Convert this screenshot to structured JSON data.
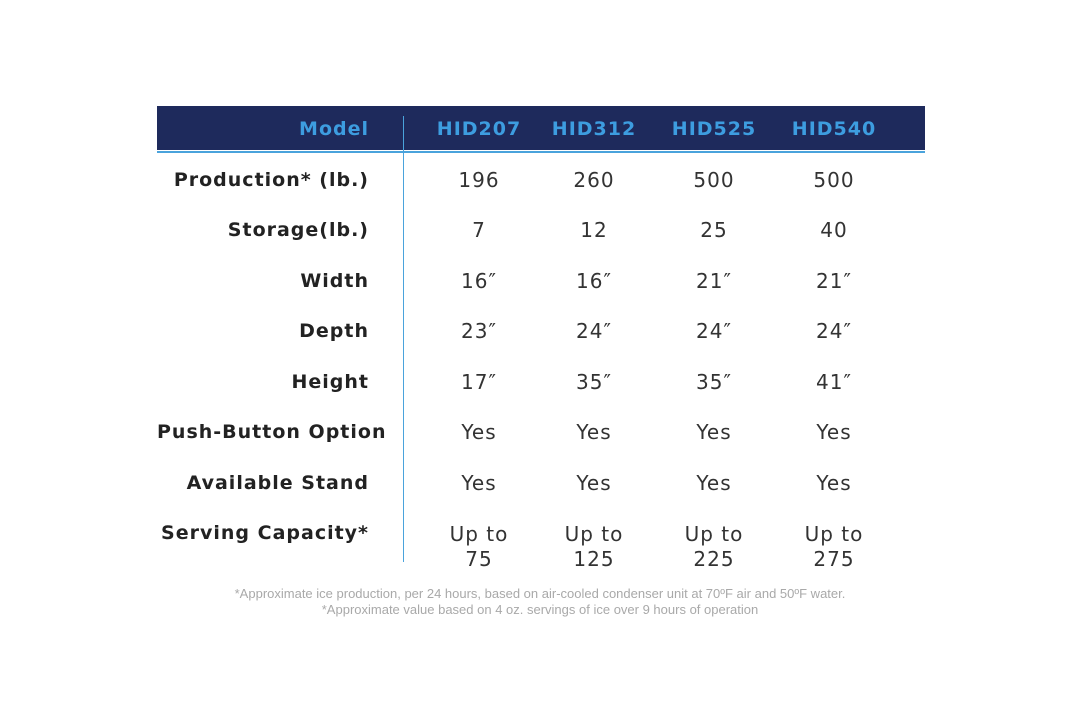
{
  "header": {
    "label": "Model",
    "models": [
      "HID207",
      "HID312",
      "HID525",
      "HID540"
    ]
  },
  "rows": [
    {
      "label": "Production* (lb.)",
      "values": [
        "196",
        "260",
        "500",
        "500"
      ]
    },
    {
      "label": "Storage(lb.)",
      "values": [
        "7",
        "12",
        "25",
        "40"
      ]
    },
    {
      "label": "Width",
      "values": [
        "16″",
        "16″",
        "21″",
        "21″"
      ]
    },
    {
      "label": "Depth",
      "values": [
        "23″",
        "24″",
        "24″",
        "24″"
      ]
    },
    {
      "label": "Height",
      "values": [
        "17″",
        "35″",
        "35″",
        "41″"
      ]
    },
    {
      "label": "Push-Button Option",
      "values": [
        "Yes",
        "Yes",
        "Yes",
        "Yes"
      ]
    },
    {
      "label": "Available Stand",
      "values": [
        "Yes",
        "Yes",
        "Yes",
        "Yes"
      ]
    },
    {
      "label": "Serving Capacity*",
      "values": [
        {
          "l1": "Up to",
          "l2": "75"
        },
        {
          "l1": "Up to",
          "l2": "125"
        },
        {
          "l1": "Up to",
          "l2": "225"
        },
        {
          "l1": "Up to",
          "l2": "275"
        }
      ]
    }
  ],
  "footnotes": [
    "*Approximate ice production, per 24 hours, based on air-cooled condenser unit at 70ºF air and 50ºF water.",
    "*Approximate value based on 4 oz. servings of ice over 9 hours of operation"
  ],
  "colors": {
    "header_bg": "#1e2a5c",
    "accent": "#4aa3dc",
    "label_text": "#222222",
    "footnote_text": "#a9a9a9"
  }
}
